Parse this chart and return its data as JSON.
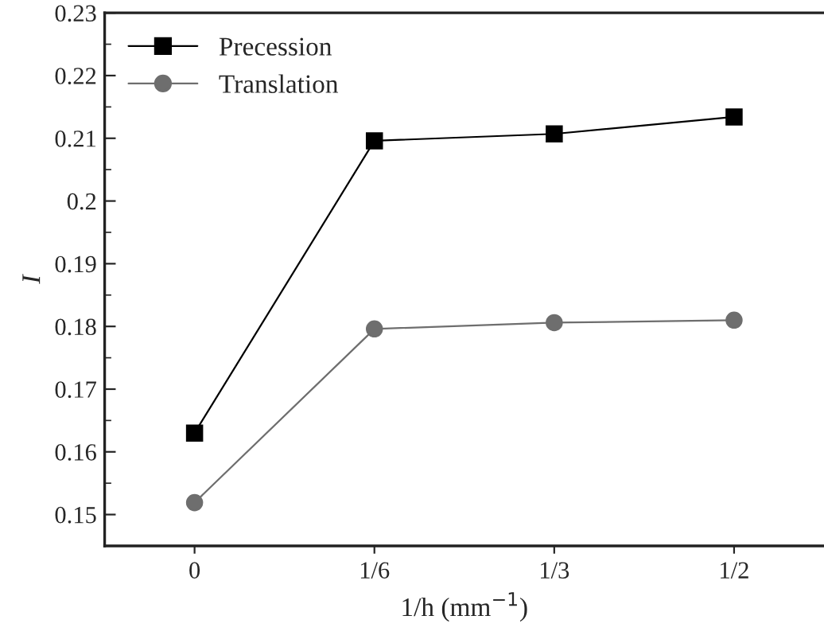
{
  "chart_data": {
    "type": "line",
    "xlabel": "1/h (mm$^{−1}$)",
    "ylabel": "I",
    "categories": [
      "0",
      "1/6",
      "1/3",
      "1/2"
    ],
    "series": [
      {
        "name": "Precession",
        "color": "#000000",
        "marker": "square",
        "values": [
          0.163,
          0.2096,
          0.2107,
          0.2134
        ]
      },
      {
        "name": "Translation",
        "color": "#6e6e6e",
        "marker": "circle",
        "values": [
          0.1519,
          0.1796,
          0.1806,
          0.181
        ]
      }
    ],
    "ylim": [
      0.145,
      0.23
    ],
    "yticks": [
      0.15,
      0.16,
      0.17,
      0.18,
      0.19,
      0.2,
      0.21,
      0.22,
      0.23
    ],
    "grid": false,
    "legend": "top left",
    "line_style": "solid"
  }
}
